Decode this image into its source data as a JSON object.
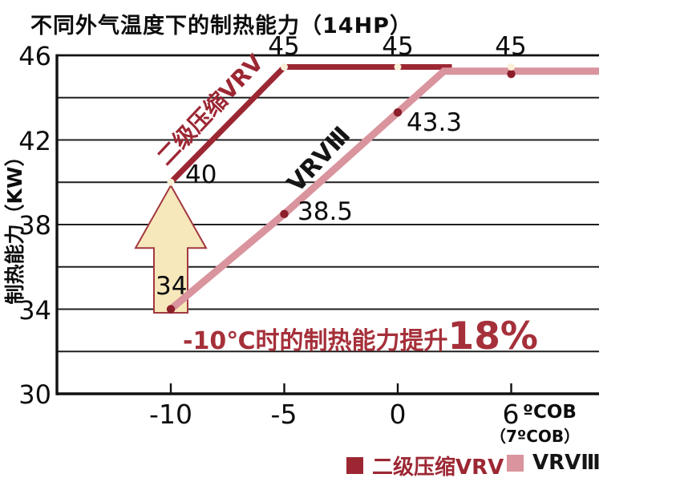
{
  "page": {
    "background": "#FFFFFF"
  },
  "chart_data": {
    "type": "line",
    "title": "不同外气温度下的制热能力（14HP）",
    "ylabel": "制热能力（KW）",
    "xlabel_unit": "ºCOB",
    "xlabel_note": "（7ºCOB）",
    "ylim": [
      30,
      46
    ],
    "grid_step": 2,
    "grid": "horizontal-only",
    "y_tick_labels": [
      "46",
      "42",
      "38",
      "34",
      "30"
    ],
    "x_tick_labels": [
      "-10",
      "-5",
      "0",
      "6"
    ],
    "legend_position": "bottom-right",
    "series": [
      {
        "name": "二级压缩VRV",
        "color": "#9C2733",
        "marker_color": "#FAF0D7",
        "x": [
          -10,
          -5,
          0,
          6
        ],
        "values": [
          40,
          45,
          45,
          45
        ],
        "point_labels": [
          "40",
          "45",
          "45",
          "45"
        ]
      },
      {
        "name": "VRVⅢ",
        "color": "#D9949D",
        "marker_color": "#8C1F2B",
        "x": [
          -10,
          -5,
          0,
          6
        ],
        "values": [
          34,
          38.5,
          43.3,
          45
        ],
        "point_labels": [
          "34",
          "38.5",
          "43.3",
          ""
        ]
      }
    ],
    "render_hints": {
      "dark_flat_value": 45.45,
      "pink_flat_value": 45.25
    },
    "annotation": {
      "prefix": "-10℃时的制热能力提升",
      "big": "18%"
    },
    "arrow": {
      "at_x": -10,
      "from_value": 34,
      "to_value": 40,
      "fill": "#F6E8BA",
      "stroke": "#A23840"
    }
  },
  "colors": {
    "grid": "#1F1F1F",
    "axis": "#111111"
  }
}
